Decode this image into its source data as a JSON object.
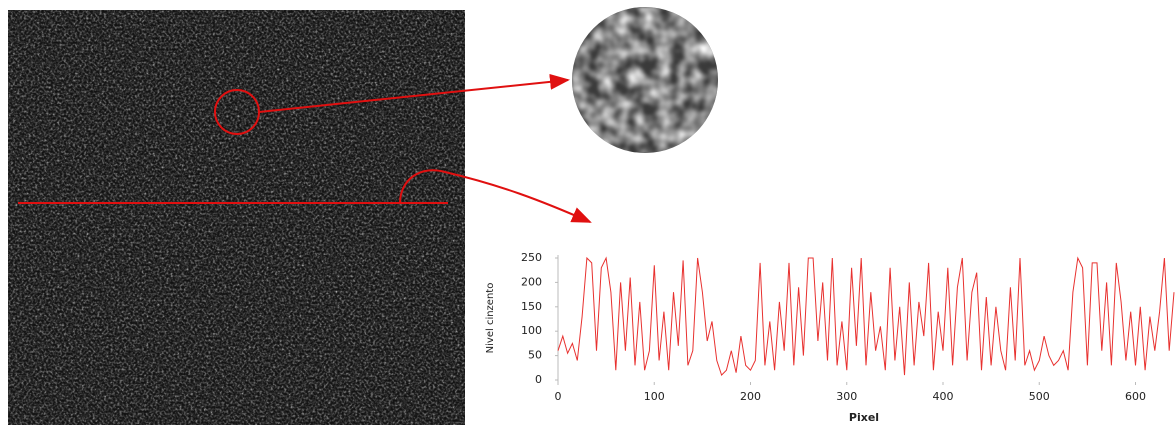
{
  "chart_data": {
    "type": "line",
    "x_label": "Pixel",
    "y_label": "Nivel cinzento",
    "x": [
      0,
      5,
      10,
      15,
      20,
      25,
      30,
      35,
      40,
      45,
      50,
      55,
      60,
      65,
      70,
      75,
      80,
      85,
      90,
      95,
      100,
      105,
      110,
      115,
      120,
      125,
      130,
      135,
      140,
      145,
      150,
      155,
      160,
      165,
      170,
      175,
      180,
      185,
      190,
      195,
      200,
      205,
      210,
      215,
      220,
      225,
      230,
      235,
      240,
      245,
      250,
      255,
      260,
      265,
      270,
      275,
      280,
      285,
      290,
      295,
      300,
      305,
      310,
      315,
      320,
      325,
      330,
      335,
      340,
      345,
      350,
      355,
      360,
      365,
      370,
      375,
      380,
      385,
      390,
      395,
      400,
      405,
      410,
      415,
      420,
      425,
      430,
      435,
      440,
      445,
      450,
      455,
      460,
      465,
      470,
      475,
      480,
      485,
      490,
      495,
      500,
      505,
      510,
      515,
      520,
      525,
      530,
      535,
      540,
      545,
      550,
      555,
      560,
      565,
      570,
      575,
      580,
      585,
      590,
      595,
      600,
      605,
      610,
      615,
      620,
      625,
      630,
      635,
      640
    ],
    "series": [
      {
        "name": "Nivel cinzento",
        "color": "#e8312f",
        "values": [
          60,
          90,
          55,
          75,
          40,
          130,
          250,
          240,
          60,
          230,
          250,
          180,
          20,
          200,
          60,
          210,
          30,
          160,
          20,
          60,
          235,
          40,
          140,
          20,
          180,
          70,
          245,
          30,
          60,
          250,
          180,
          80,
          120,
          40,
          10,
          20,
          60,
          15,
          90,
          30,
          20,
          40,
          240,
          30,
          120,
          20,
          160,
          60,
          240,
          30,
          190,
          50,
          250,
          250,
          80,
          200,
          40,
          250,
          30,
          120,
          20,
          230,
          70,
          250,
          30,
          180,
          60,
          110,
          20,
          230,
          40,
          150,
          10,
          200,
          30,
          160,
          90,
          240,
          20,
          140,
          60,
          230,
          30,
          190,
          250,
          40,
          180,
          220,
          20,
          170,
          30,
          150,
          60,
          20,
          190,
          40,
          250,
          30,
          60,
          20,
          40,
          90,
          50,
          30,
          40,
          60,
          20,
          180,
          250,
          230,
          30,
          240,
          240,
          60,
          200,
          30,
          240,
          160,
          40,
          140,
          30,
          150,
          20,
          130,
          60,
          140,
          250,
          60,
          180
        ]
      }
    ],
    "xlim": [
      0,
      640
    ],
    "ylim": [
      0,
      250
    ],
    "xticks": [
      0,
      100,
      200,
      300,
      400,
      500,
      600
    ],
    "yticks": [
      0,
      50,
      100,
      150,
      200,
      250
    ]
  }
}
